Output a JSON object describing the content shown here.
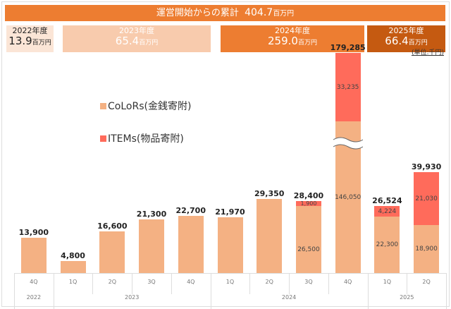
{
  "header": {
    "total_label": "運営開始からの累計",
    "total_value": "404.7",
    "unit": "百万円"
  },
  "fiscal_years": [
    {
      "label": "2022年度",
      "value": "13.9",
      "unit": "百万円",
      "color": "#fbe5d6",
      "text": "#222"
    },
    {
      "label": "2023年度",
      "value": "65.4",
      "unit": "百万円",
      "color": "#f8cbad",
      "text": "#fff"
    },
    {
      "label": "2024年度",
      "value": "259.0",
      "unit": "百万円",
      "color": "#ed7d31",
      "text": "#fff"
    },
    {
      "label": "2025年度",
      "value": "66.4",
      "unit": "百万円",
      "color": "#c55a11",
      "text": "#fff"
    }
  ],
  "unit_note": "(単位:千円)",
  "chart_data": {
    "type": "bar",
    "stacked": true,
    "categories": [
      "4Q",
      "1Q",
      "2Q",
      "3Q",
      "4Q",
      "1Q",
      "2Q",
      "3Q",
      "4Q",
      "1Q",
      "2Q"
    ],
    "years": [
      {
        "label": "2022",
        "span": 1
      },
      {
        "label": "2023",
        "span": 4
      },
      {
        "label": "2024",
        "span": 4
      },
      {
        "label": "2025",
        "span": 2
      }
    ],
    "series": [
      {
        "name": "CoLoRs(金銭寄附)",
        "color": "#f4b183",
        "values": [
          13900,
          4800,
          16600,
          21300,
          22700,
          21970,
          29350,
          26500,
          146050,
          22300,
          18900
        ]
      },
      {
        "name": "ITEMs(物品寄附)",
        "color": "#ff6b5b",
        "values": [
          0,
          0,
          0,
          0,
          0,
          0,
          0,
          1900,
          33235,
          4224,
          21030
        ]
      }
    ],
    "totals": [
      "13,900",
      "4,800",
      "16,600",
      "21,300",
      "22,700",
      "21,970",
      "29,350",
      "28,400",
      "179,285",
      "26,524",
      "39,930"
    ],
    "segment_labels": {
      "colors": [
        null,
        null,
        null,
        null,
        null,
        null,
        null,
        "26,500",
        "146,050",
        "22,300",
        "18,900"
      ],
      "items": [
        null,
        null,
        null,
        null,
        null,
        null,
        null,
        "1,900",
        "33,235",
        "4,224",
        "21,030"
      ]
    },
    "axis_break": "4Q 2024 bar",
    "unit": "千円"
  }
}
